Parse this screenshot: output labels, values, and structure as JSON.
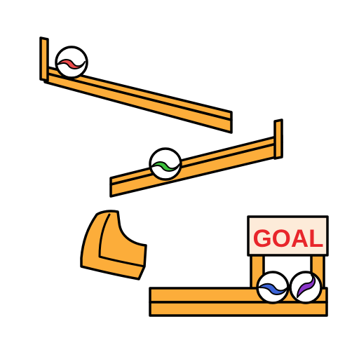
{
  "goal_sign": {
    "label": "GOAL",
    "text_color": "#e8262b",
    "background": "#fdebd9"
  },
  "colors": {
    "track": "#fcad3a",
    "outline": "#000000",
    "marble_fill": "#ffffff"
  },
  "marbles": [
    {
      "name": "red-marble",
      "swirl_color": "#ec4c4c",
      "location": "top-ramp"
    },
    {
      "name": "green-marble",
      "swirl_color": "#3cbf3c",
      "location": "middle-ramp"
    },
    {
      "name": "blue-marble",
      "swirl_color": "#3b63d6",
      "location": "goal-area"
    },
    {
      "name": "purple-marble",
      "swirl_color": "#8a36c9",
      "location": "goal-area"
    }
  ],
  "pieces": [
    {
      "name": "top-ramp",
      "type": "slope"
    },
    {
      "name": "middle-ramp",
      "type": "slope"
    },
    {
      "name": "curved-chute",
      "type": "curve"
    },
    {
      "name": "bottom-track",
      "type": "flat"
    }
  ]
}
